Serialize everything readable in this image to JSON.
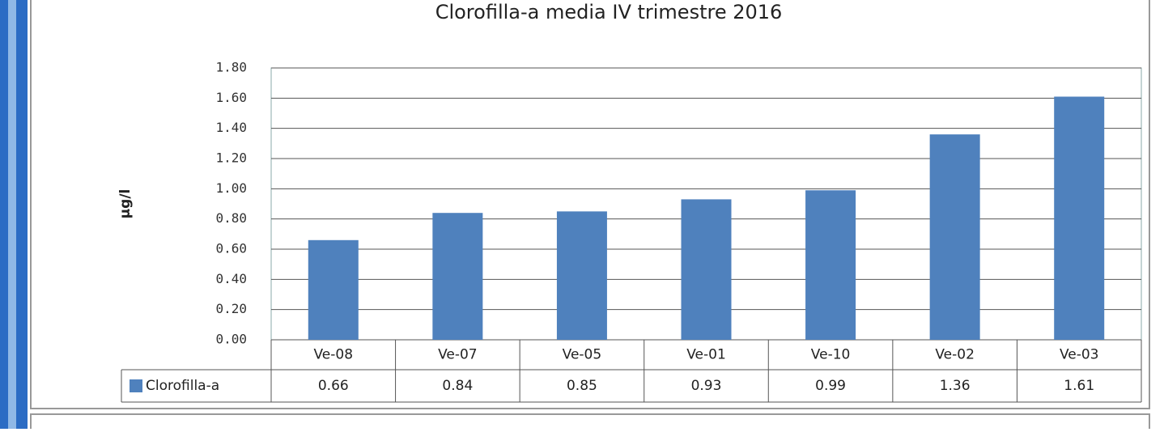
{
  "chart_data": {
    "type": "bar",
    "title": "Clorofilla-a media IV trimestre 2016",
    "y_label": "µg/l",
    "categories": [
      "Ve-08",
      "Ve-07",
      "Ve-05",
      "Ve-01",
      "Ve-10",
      "Ve-02",
      "Ve-03"
    ],
    "series": [
      {
        "name": "Clorofilla-a",
        "color": "#4f81bd",
        "values": [
          0.66,
          0.84,
          0.85,
          0.93,
          0.99,
          1.36,
          1.61
        ]
      }
    ],
    "ylim": [
      0,
      1.8
    ],
    "yticks": [
      {
        "value": 0,
        "label": "0.00"
      },
      {
        "value": 0.2,
        "label": "0.20"
      },
      {
        "value": 0.4,
        "label": "0.40"
      },
      {
        "value": 0.6,
        "label": "0.60"
      },
      {
        "value": 0.8,
        "label": "0.80"
      },
      {
        "value": 1,
        "label": "1.00"
      },
      {
        "value": 1.2,
        "label": "1.20"
      },
      {
        "value": 1.4,
        "label": "1.40"
      },
      {
        "value": 1.6,
        "label": "1.60"
      },
      {
        "value": 1.8,
        "label": "1.80"
      }
    ],
    "grid": true
  }
}
